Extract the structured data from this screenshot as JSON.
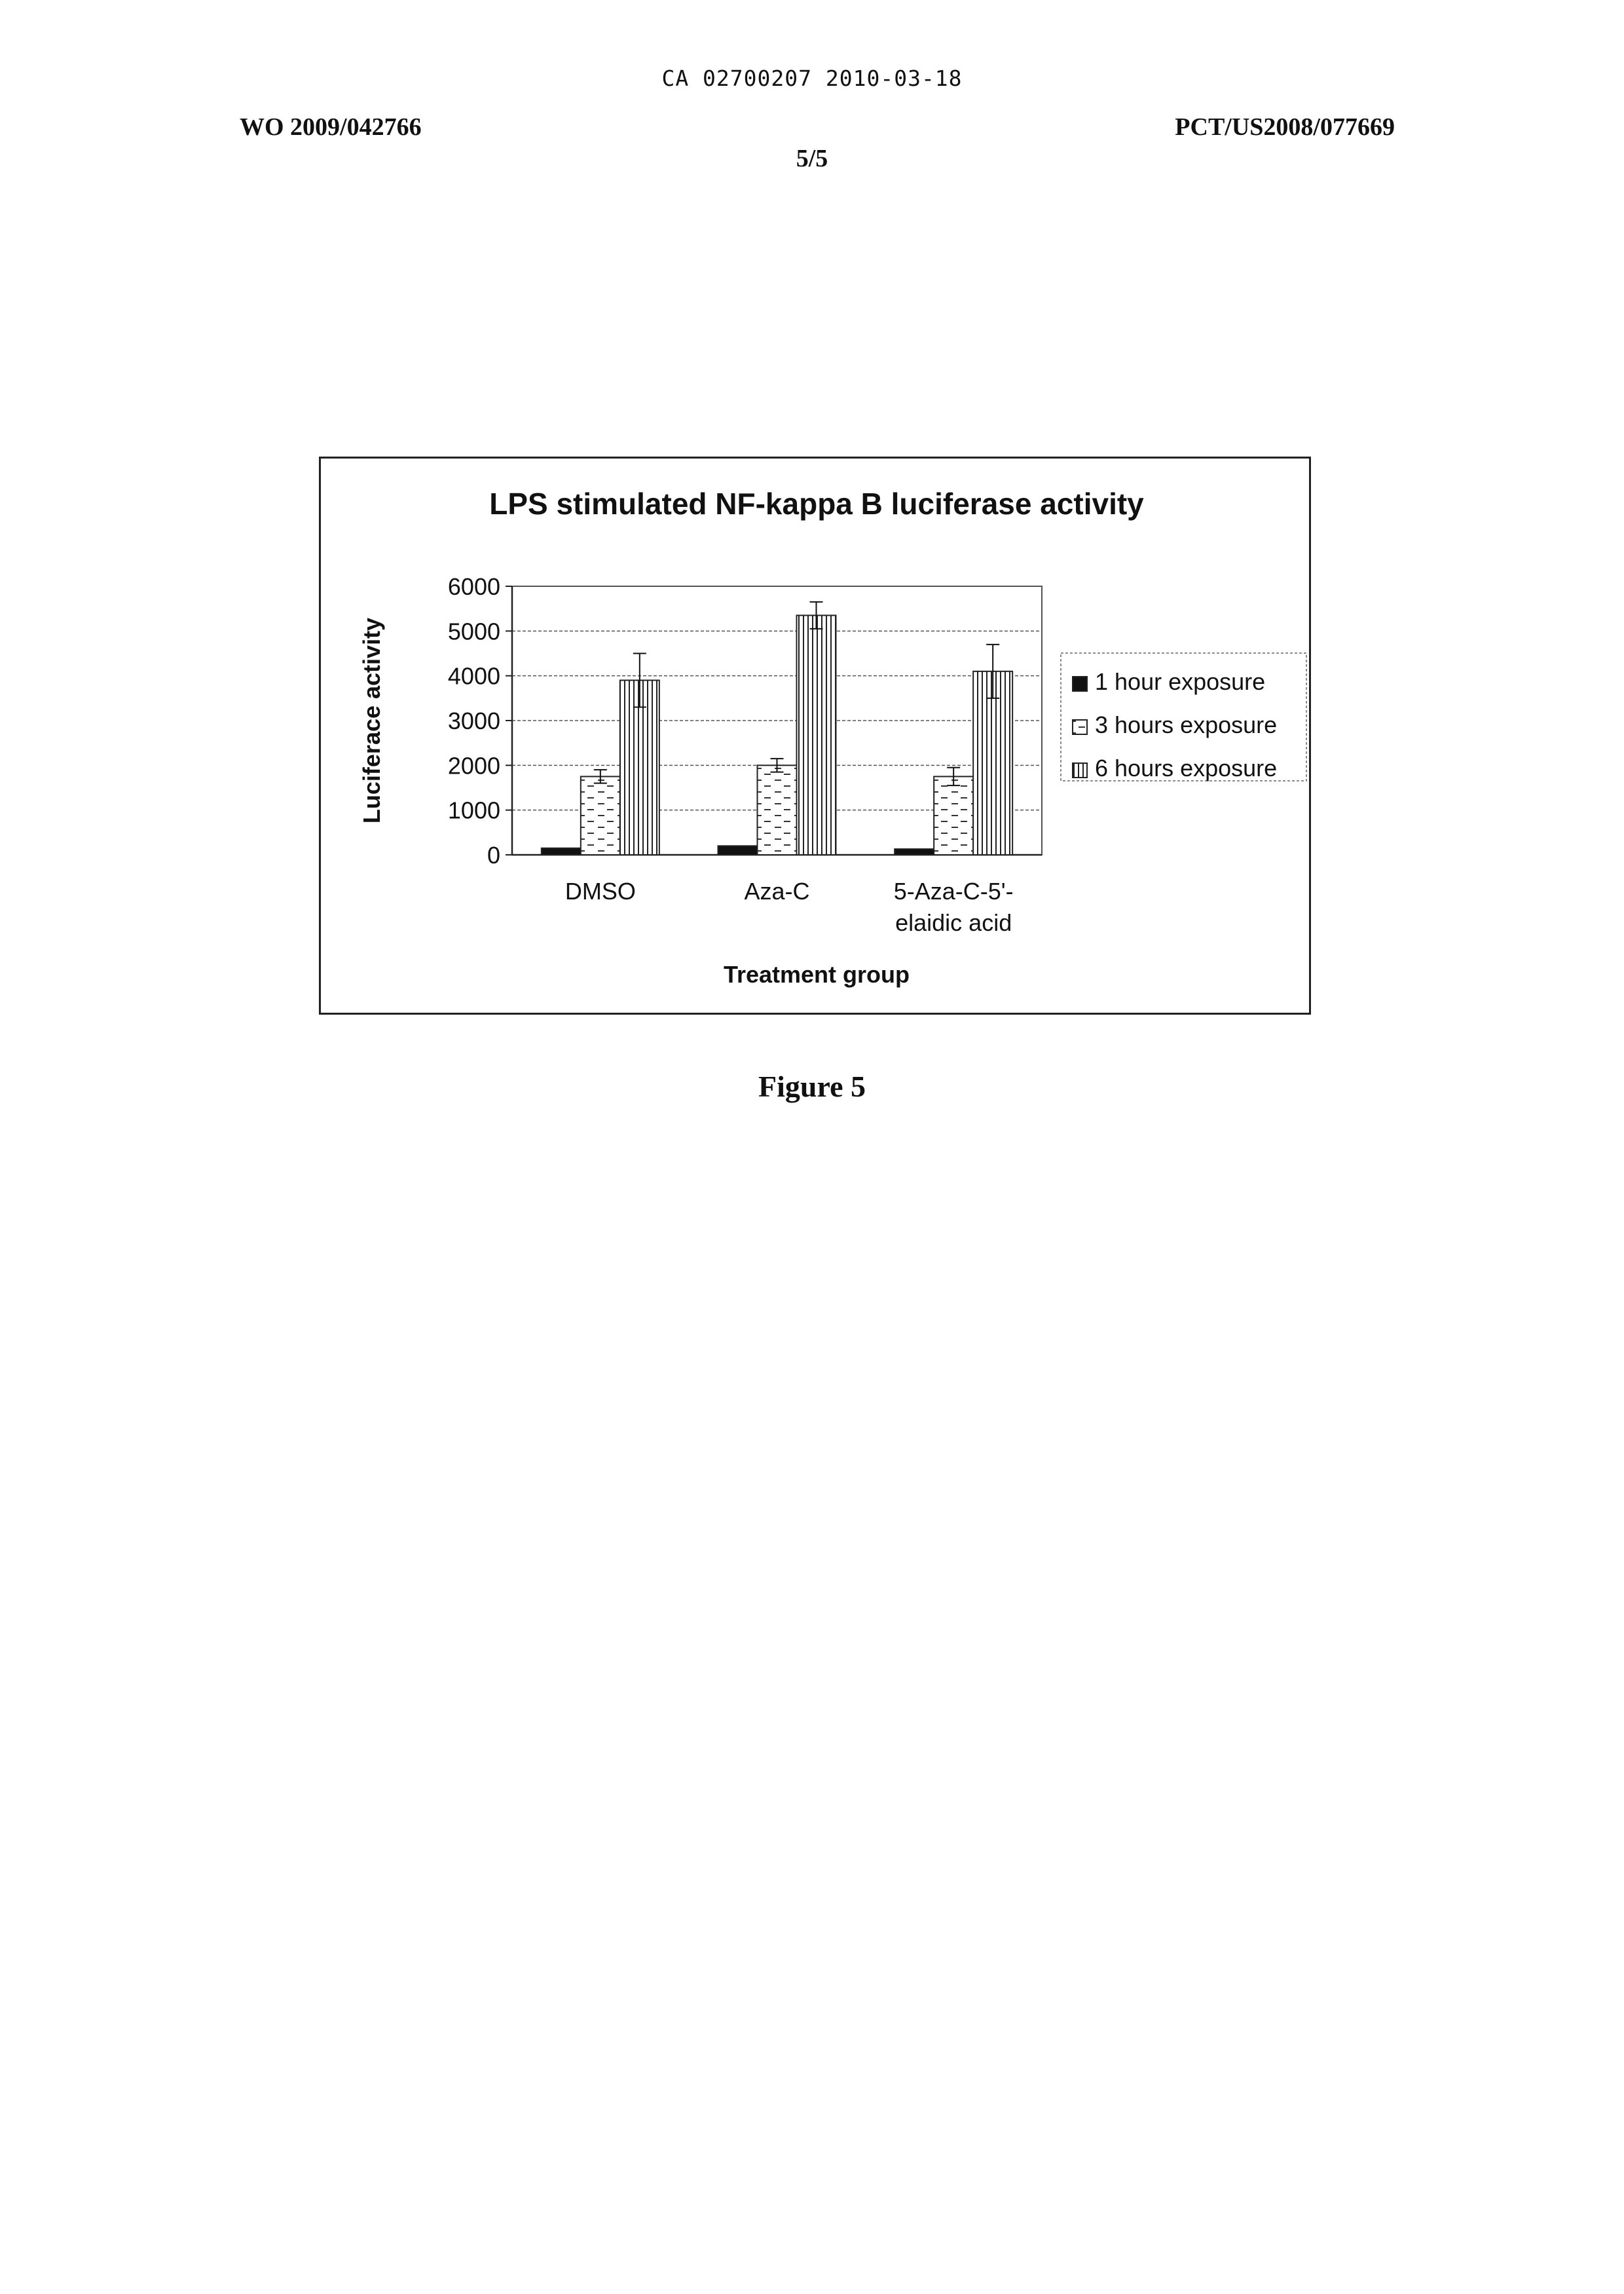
{
  "document": {
    "stamp": "CA 02700207 2010-03-18",
    "publication_left": "WO 2009/042766",
    "publication_right": "PCT/US2008/077669",
    "page_number": "5/5",
    "caption": "Figure 5"
  },
  "chart_data": {
    "type": "bar",
    "title": "LPS stimulated NF-kappa B luciferase activity",
    "xlabel": "Treatment group",
    "ylabel": "Luciferace activity",
    "ylim": [
      0,
      6000
    ],
    "yticks": [
      0,
      1000,
      2000,
      3000,
      4000,
      5000,
      6000
    ],
    "grid": "horizontal dashed",
    "legend_position": "right",
    "categories": [
      [
        "DMSO"
      ],
      [
        "Aza-C"
      ],
      [
        "5-Aza-C-5'-",
        "elaidic acid"
      ]
    ],
    "series": [
      {
        "name": "1 hour exposure",
        "values": [
          150,
          200,
          130
        ],
        "errors": [
          0,
          0,
          0
        ]
      },
      {
        "name": "3 hours exposure",
        "values": [
          1750,
          2000,
          1750
        ],
        "errors": [
          150,
          150,
          200
        ]
      },
      {
        "name": "6 hours exposure",
        "values": [
          3900,
          5350,
          4100
        ],
        "errors": [
          600,
          300,
          600
        ]
      }
    ]
  }
}
